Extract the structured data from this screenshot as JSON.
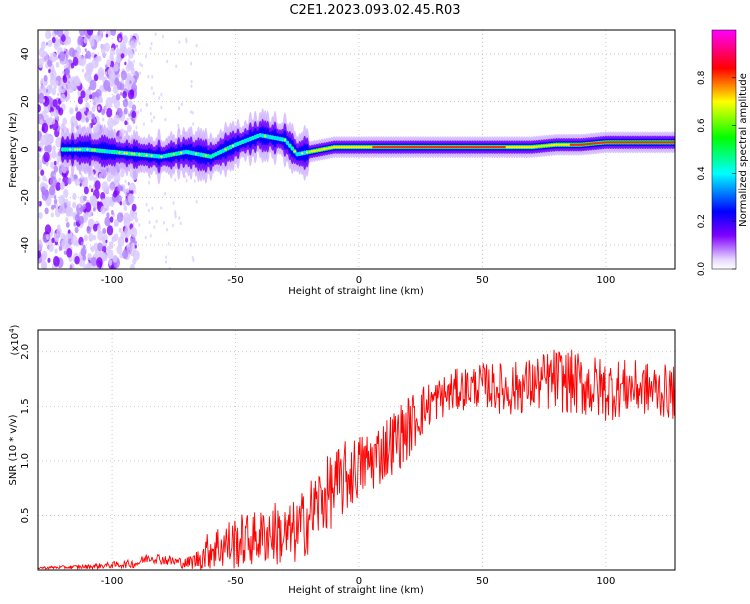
{
  "title": "C2E1.2023.093.02.45.R03",
  "chart_data": [
    {
      "type": "heatmap",
      "xlabel": "Height of straight line (km)",
      "ylabel": "Frequency (Hz)",
      "xlim": [
        -130,
        128
      ],
      "ylim": [
        -50,
        50
      ],
      "xticks": [
        -100,
        -50,
        0,
        50,
        100
      ],
      "yticks": [
        -40,
        -20,
        0,
        20,
        40
      ],
      "grid": true,
      "colorbar": {
        "label": "Normalized spectral amplitude",
        "range": [
          0,
          1
        ],
        "ticks": [
          0.0,
          0.2,
          0.4,
          0.6,
          0.8
        ],
        "colormap": [
          "#ffffff",
          "#7f00ff",
          "#0000ff",
          "#00ffff",
          "#00ff00",
          "#ffff00",
          "#ff0000",
          "#ff00ff"
        ]
      },
      "ridge": {
        "x": [
          -118,
          -110,
          -100,
          -90,
          -80,
          -70,
          -60,
          -50,
          -40,
          -30,
          -25,
          -20,
          -10,
          0,
          10,
          30,
          50,
          70,
          80,
          90,
          100,
          110,
          120,
          128
        ],
        "y": [
          0,
          0,
          -1,
          -2,
          -3,
          -1,
          -3,
          2,
          6,
          4,
          -2,
          -1,
          1,
          1,
          1,
          1,
          1,
          1,
          2,
          2,
          3,
          3,
          3,
          3
        ]
      }
    },
    {
      "type": "line",
      "xlabel": "Height of straight line (km)",
      "ylabel": "SNR (10 * v/v)",
      "yscale_label": "(x10",
      "yscale_exp": "4",
      "yscale_close": ")",
      "xlim": [
        -130,
        128
      ],
      "ylim": [
        0,
        2.2
      ],
      "xticks": [
        -100,
        -50,
        0,
        50,
        100
      ],
      "yticks": [
        0.5,
        1.0,
        1.5,
        2.0
      ],
      "color": "#ff0000",
      "series": [
        {
          "envelope_x": [
            -130,
            -110,
            -90,
            -85,
            -80,
            -70,
            -65,
            -60,
            -50,
            -45,
            -40,
            -35,
            -30,
            -25,
            -20,
            -15,
            -10,
            -5,
            0,
            5,
            10,
            15,
            20,
            25,
            30,
            40,
            50,
            60,
            70,
            80,
            90,
            100,
            110,
            120,
            128
          ],
          "envelope_mean": [
            0.02,
            0.03,
            0.06,
            0.12,
            0.1,
            0.06,
            0.1,
            0.2,
            0.25,
            0.28,
            0.3,
            0.35,
            0.3,
            0.35,
            0.5,
            0.65,
            0.75,
            0.85,
            0.95,
            1.0,
            1.1,
            1.2,
            1.3,
            1.45,
            1.55,
            1.65,
            1.7,
            1.65,
            1.7,
            1.75,
            1.7,
            1.65,
            1.68,
            1.65,
            1.62
          ],
          "envelope_spread": [
            0.01,
            0.02,
            0.04,
            0.05,
            0.05,
            0.05,
            0.1,
            0.2,
            0.25,
            0.25,
            0.25,
            0.3,
            0.3,
            0.3,
            0.35,
            0.35,
            0.35,
            0.35,
            0.3,
            0.3,
            0.3,
            0.3,
            0.3,
            0.25,
            0.2,
            0.2,
            0.2,
            0.25,
            0.25,
            0.3,
            0.3,
            0.3,
            0.25,
            0.25,
            0.25
          ]
        }
      ]
    }
  ]
}
